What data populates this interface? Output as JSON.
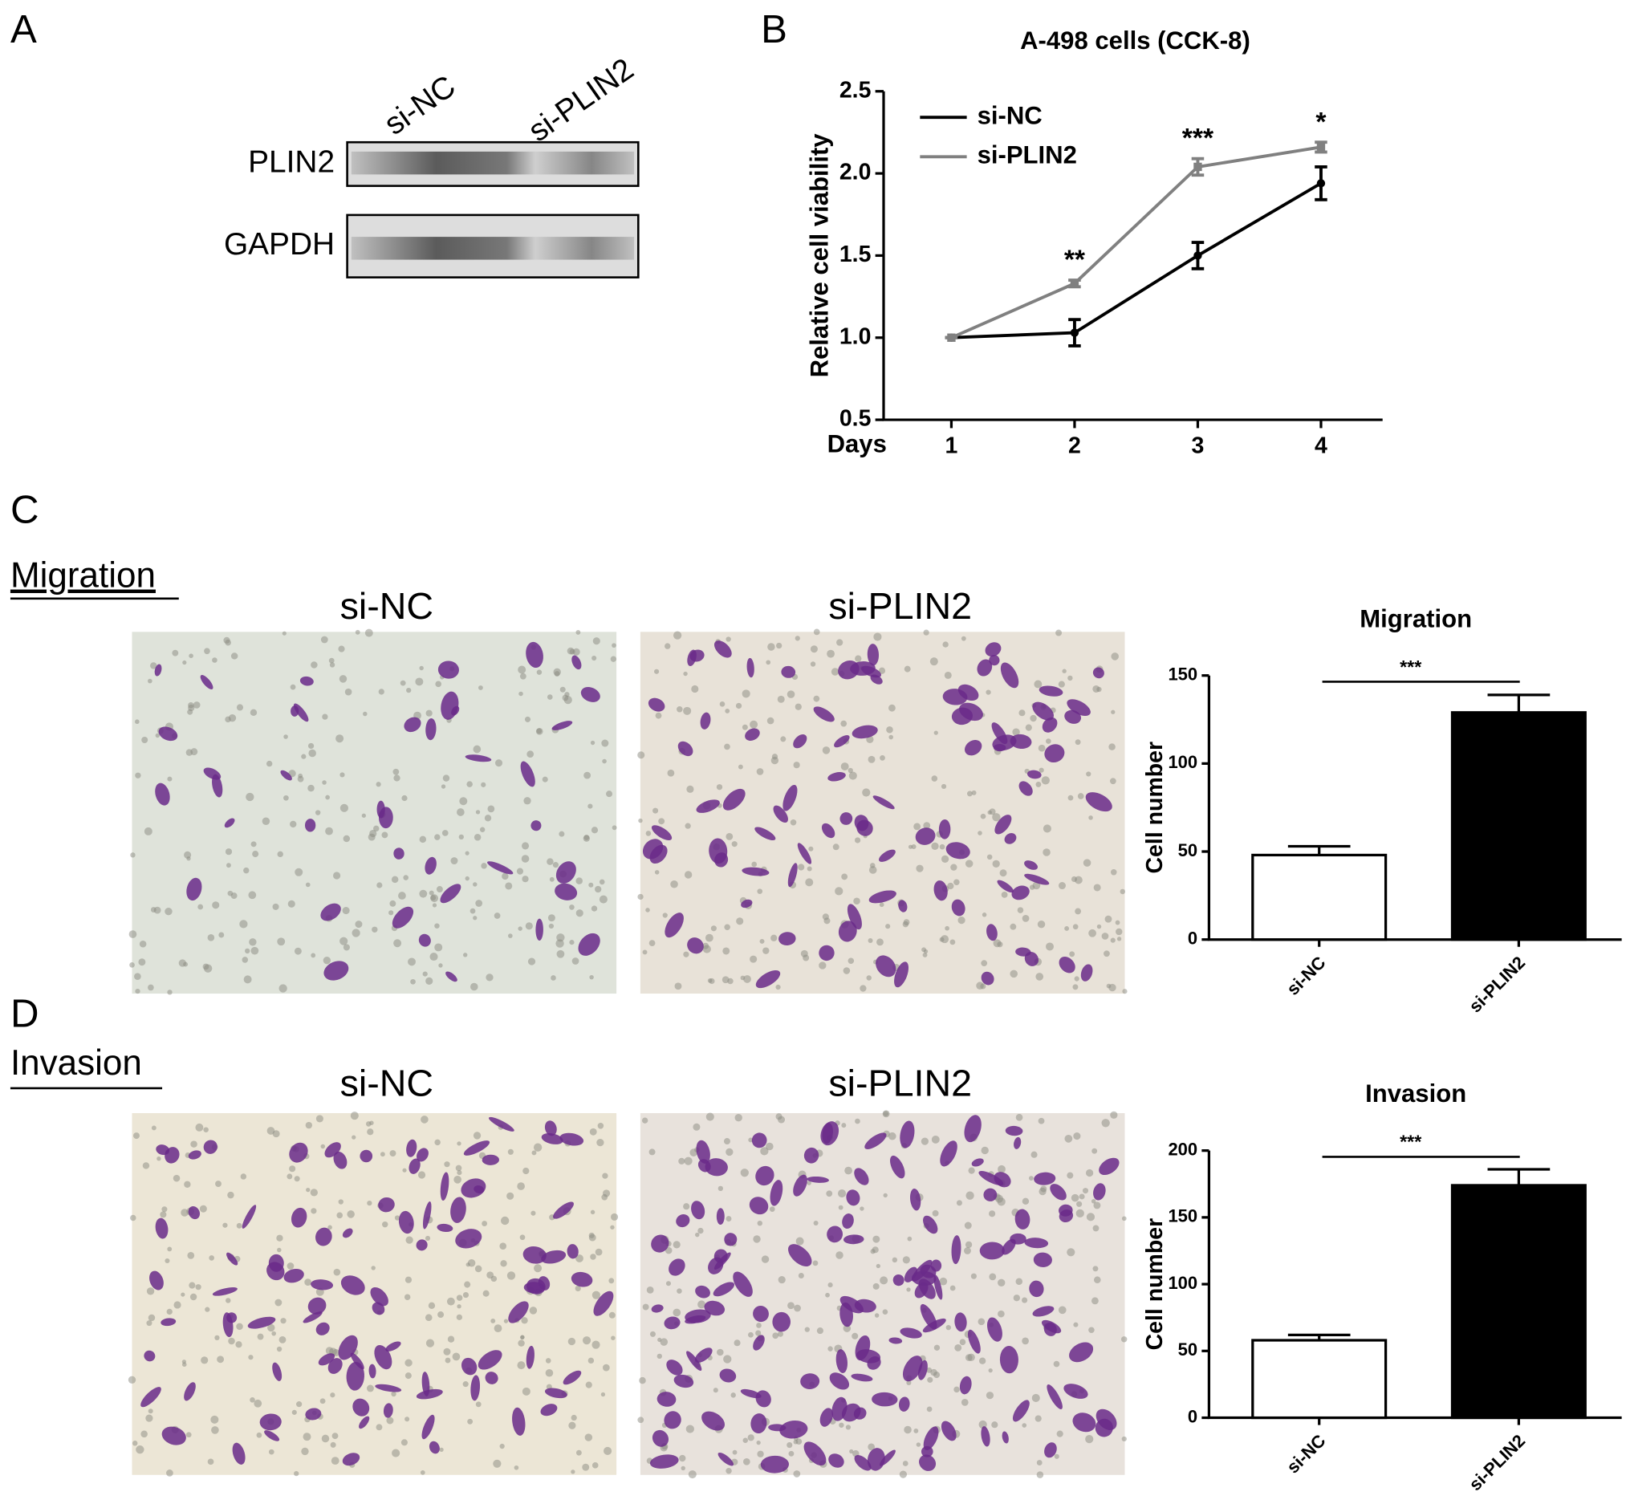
{
  "panels": {
    "labels": [
      "A",
      "B",
      "C",
      "D"
    ]
  },
  "blot": {
    "lanes": [
      "si-NC",
      "si-PLIN2"
    ],
    "rows": [
      "PLIN2",
      "GAPDH"
    ]
  },
  "sections": [
    {
      "title": "Migration",
      "images": [
        "si-NC",
        "si-PLIN2"
      ]
    },
    {
      "title": "Invasion",
      "images": [
        "si-NC",
        "si-PLIN2"
      ]
    }
  ],
  "chart_data": [
    {
      "type": "line",
      "title": "A-498 cells (CCK-8)",
      "ylabel": "Relative cell viability",
      "xlabel": "Days",
      "x": [
        1,
        2,
        3,
        4
      ],
      "xlim": [
        0.45,
        4.5
      ],
      "xticks": [
        1,
        2,
        3,
        4
      ],
      "ylim": [
        0.5,
        2.5
      ],
      "yticks": [
        0.5,
        {
          "value": 1,
          "label": "1.0"
        },
        1.5,
        {
          "value": 2,
          "label": "2.0"
        },
        2.5
      ],
      "legend": "upper left",
      "series": [
        {
          "name": "si-NC",
          "color": "#000000",
          "values": [
            1,
            1.03,
            1.5,
            1.94
          ],
          "errors": [
            0,
            0.08,
            0.08,
            0.1
          ]
        },
        {
          "name": "si-PLIN2",
          "color": "#808080",
          "values": [
            1,
            1.33,
            2.04,
            2.16
          ],
          "errors": [
            0,
            0.02,
            0.05,
            0.03
          ]
        }
      ],
      "annotations": [
        {
          "text": "**",
          "x": 2
        },
        {
          "text": "***",
          "x": 3
        },
        {
          "text": "*",
          "x": 4
        }
      ]
    },
    {
      "type": "bar",
      "title": "Migration",
      "ylabel": "Cell number",
      "categories": [
        "si-NC",
        "si-PLIN2"
      ],
      "values": [
        48,
        129
      ],
      "errors": [
        5,
        10
      ],
      "colors": [
        "#ffffff",
        "#000000"
      ],
      "ylim": [
        0,
        150
      ],
      "yticks": [
        0,
        50,
        100,
        150
      ],
      "significance": "***"
    },
    {
      "type": "bar",
      "title": "Invasion",
      "ylabel": "Cell number",
      "categories": [
        "si-NC",
        "si-PLIN2"
      ],
      "values": [
        58,
        174
      ],
      "errors": [
        4,
        12
      ],
      "colors": [
        "#ffffff",
        "#000000"
      ],
      "ylim": [
        0,
        200
      ],
      "yticks": [
        0,
        50,
        100,
        150,
        200
      ],
      "significance": "***"
    }
  ]
}
